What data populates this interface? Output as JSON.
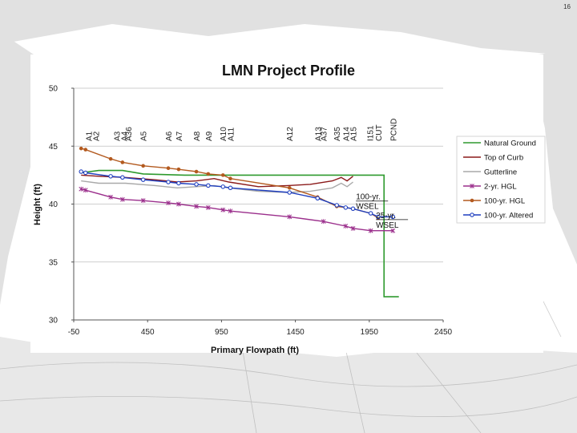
{
  "page_number": "16",
  "chart_data": {
    "type": "line",
    "title": "LMN Project Profile",
    "xlabel": "Primary Flowpath (ft)",
    "ylabel": "Height (ft)",
    "xlim": [
      -50,
      2450
    ],
    "ylim": [
      30,
      50
    ],
    "xticks": [
      -50,
      450,
      950,
      1450,
      1950,
      2450
    ],
    "xtick_labels": [
      "-50",
      "450",
      "950",
      "1450",
      "1950",
      "2450"
    ],
    "yticks": [
      30,
      35,
      40,
      45,
      50
    ],
    "ytick_labels": [
      "30",
      "35",
      "40",
      "45",
      "50"
    ],
    "grid": "horizontal",
    "cross_sections": [
      {
        "label": "A1",
        "x": 50
      },
      {
        "label": "A2",
        "x": 100
      },
      {
        "label": "A3",
        "x": 240
      },
      {
        "label": "A4",
        "x": 290
      },
      {
        "label": "A36",
        "x": 320
      },
      {
        "label": "A5",
        "x": 420
      },
      {
        "label": "A6",
        "x": 590
      },
      {
        "label": "A7",
        "x": 660
      },
      {
        "label": "A8",
        "x": 780
      },
      {
        "label": "A9",
        "x": 860
      },
      {
        "label": "A10",
        "x": 960
      },
      {
        "label": "A11",
        "x": 1010
      },
      {
        "label": "A12",
        "x": 1410
      },
      {
        "label": "A13",
        "x": 1600
      },
      {
        "label": "A37",
        "x": 1640
      },
      {
        "label": "A35",
        "x": 1730
      },
      {
        "label": "A14",
        "x": 1790
      },
      {
        "label": "A15",
        "x": 1840
      },
      {
        "label": "I151",
        "x": 1955
      },
      {
        "label": "CUT",
        "x": 2010
      },
      {
        "label": "PCND",
        "x": 2110
      }
    ],
    "series": [
      {
        "name": "Natural Ground",
        "color": "#2e9a2e",
        "marker": "none",
        "x": [
          0,
          120,
          280,
          420,
          700,
          1000,
          1500,
          1800,
          2000,
          2050,
          2050,
          2150
        ],
        "y": [
          42.7,
          42.9,
          42.9,
          42.6,
          42.5,
          42.5,
          42.5,
          42.5,
          42.5,
          42.5,
          32.0,
          32.0
        ]
      },
      {
        "name": "Top of Curb",
        "color": "#8b1a1a",
        "marker": "none",
        "x": [
          0,
          120,
          300,
          500,
          650,
          780,
          900,
          1000,
          1200,
          1400,
          1550,
          1700,
          1760,
          1800,
          1840
        ],
        "y": [
          42.5,
          42.4,
          42.3,
          42.1,
          41.9,
          42.0,
          42.2,
          41.9,
          41.5,
          41.6,
          41.7,
          42.0,
          42.3,
          42.0,
          42.4
        ]
      },
      {
        "name": "Gutterline",
        "color": "#a9a9a9",
        "marker": "none",
        "x": [
          0,
          120,
          300,
          500,
          650,
          780,
          900,
          1000,
          1200,
          1400,
          1550,
          1700,
          1760,
          1800,
          1840
        ],
        "y": [
          42.0,
          41.8,
          41.8,
          41.6,
          41.4,
          41.5,
          41.6,
          41.4,
          41.1,
          41.0,
          41.1,
          41.4,
          41.8,
          41.5,
          41.9
        ]
      },
      {
        "name": "2-yr. HGL",
        "color": "#9b2f8c",
        "marker": "x",
        "x": [
          0,
          30,
          200,
          280,
          420,
          590,
          660,
          780,
          860,
          960,
          1010,
          1410,
          1640,
          1790,
          1840,
          1960,
          2110
        ],
        "y": [
          41.3,
          41.2,
          40.6,
          40.4,
          40.3,
          40.1,
          40.0,
          39.8,
          39.7,
          39.5,
          39.4,
          38.9,
          38.5,
          38.1,
          37.9,
          37.7,
          37.7
        ]
      },
      {
        "name": "100-yr. HGL",
        "color": "#b35a1f",
        "marker": "circle",
        "x": [
          0,
          30,
          200,
          280,
          420,
          590,
          660,
          780,
          860,
          960,
          1010,
          1410,
          1600,
          1730,
          1790,
          1840,
          1960,
          2010
        ],
        "y": [
          44.8,
          44.7,
          43.9,
          43.6,
          43.3,
          43.1,
          43.0,
          42.8,
          42.6,
          42.5,
          42.2,
          41.4,
          40.6,
          39.8,
          39.7,
          39.6,
          39.2,
          38.8
        ]
      },
      {
        "name": "100-yr. Altered",
        "color": "#1f3fbf",
        "marker": "diamond",
        "x": [
          0,
          30,
          200,
          280,
          420,
          590,
          660,
          780,
          860,
          960,
          1010,
          1410,
          1600,
          1730,
          1790,
          1840,
          1960,
          2010,
          2110
        ],
        "y": [
          42.8,
          42.7,
          42.4,
          42.3,
          42.1,
          41.9,
          41.8,
          41.7,
          41.6,
          41.5,
          41.4,
          41.0,
          40.5,
          39.9,
          39.7,
          39.6,
          39.2,
          38.9,
          38.9
        ]
      }
    ],
    "annotations": [
      {
        "lines": [
          "100-yr.",
          "WSEL"
        ],
        "x": 1860,
        "y": 40.4
      },
      {
        "lines": [
          "25-yr.",
          "WSEL"
        ],
        "x": 1995,
        "y": 38.8
      }
    ],
    "legend_position": "right"
  }
}
